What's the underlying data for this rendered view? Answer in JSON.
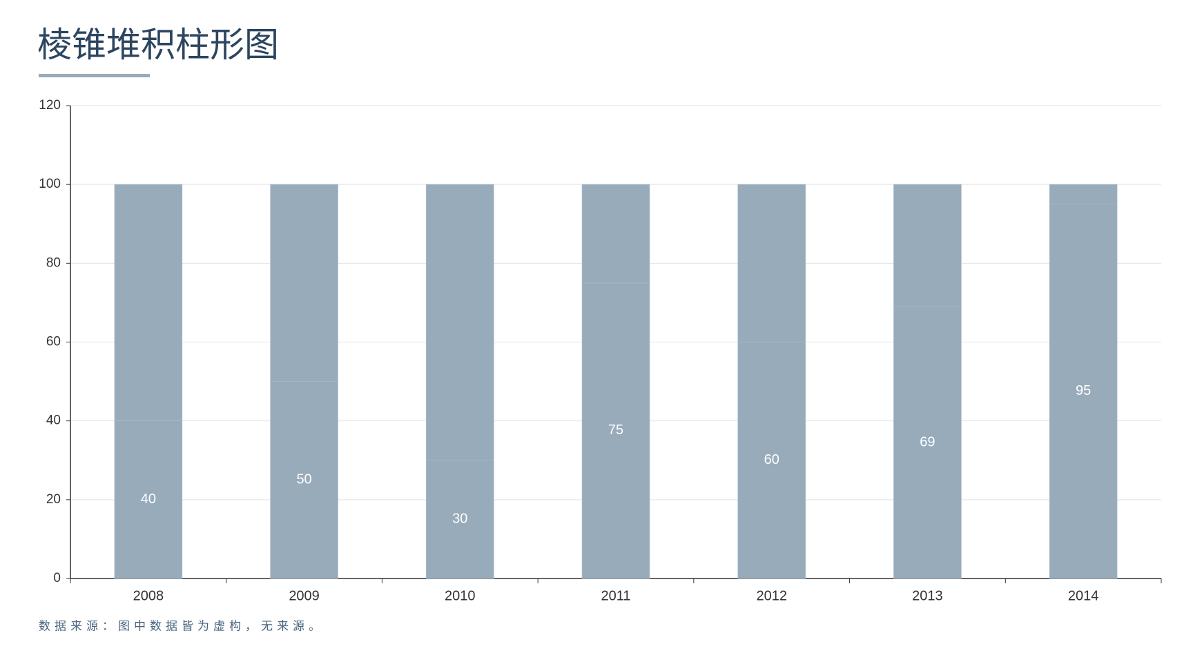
{
  "title": "棱锥堆积柱形图",
  "footnote": "数据来源：图中数据皆为虚构，无来源。",
  "chart_data": {
    "type": "stacked-bar",
    "categories": [
      "2008",
      "2009",
      "2010",
      "2011",
      "2012",
      "2013",
      "2014"
    ],
    "series": [
      {
        "color": "#98abbb",
        "values": [
          40,
          50,
          30,
          75,
          60,
          69,
          95
        ]
      },
      {
        "color": "#98abbb",
        "values": [
          60,
          50,
          70,
          25,
          40,
          31,
          5
        ]
      }
    ],
    "ylim": [
      0,
      120
    ],
    "yticks": [
      0,
      20,
      40,
      60,
      80,
      100,
      120
    ],
    "grid": true
  }
}
